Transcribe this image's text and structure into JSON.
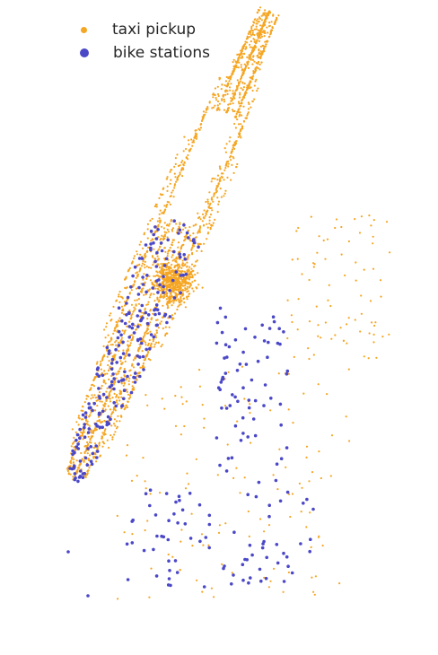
{
  "legend": {
    "taxi_label": "taxi pickup",
    "bike_label": "bike stations"
  },
  "colors": {
    "taxi": "#F5A623",
    "bike": "#4B48C8"
  },
  "chart_data": {
    "type": "scatter",
    "title": "",
    "xlabel": "",
    "ylabel": "",
    "axes_visible": false,
    "grid": false,
    "legend_position": "top-left",
    "series": [
      {
        "name": "taxi pickup",
        "marker": "small dot",
        "approx_count": 3000,
        "region": "dense along Manhattan avenues, sparse in Brooklyn and Queens"
      },
      {
        "name": "bike stations",
        "marker": "dot",
        "approx_count": 330,
        "region": "Manhattan south of Central Park and northwest Brooklyn"
      }
    ]
  }
}
